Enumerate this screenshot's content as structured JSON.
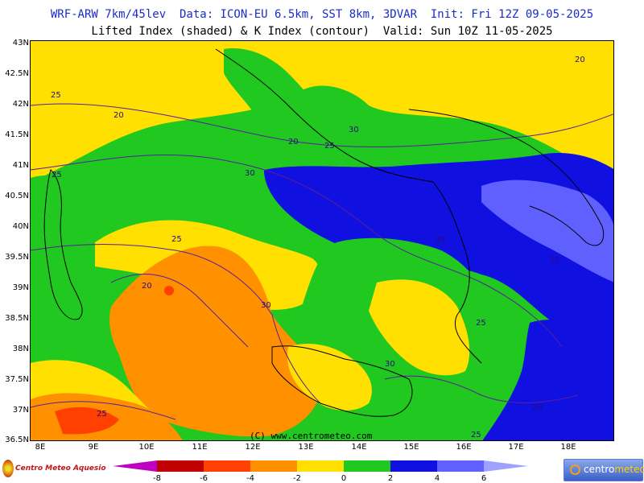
{
  "header": {
    "line1": "WRF-ARW 7km/45lev  Data: ICON-EU 6.5km, SST 8km, 3DVAR  Init: Fri 12Z 09-05-2025",
    "line2": "Lifted Index (shaded) & K Index (contour)  Valid: Sun 10Z 11-05-2025"
  },
  "axes": {
    "lat_labels": [
      "43N",
      "42.5N",
      "42N",
      "41.5N",
      "41N",
      "40.5N",
      "40N",
      "39.5N",
      "39N",
      "38.5N",
      "38N",
      "37.5N",
      "37N",
      "36.5N"
    ],
    "lon_labels": [
      "8E",
      "9E",
      "10E",
      "11E",
      "12E",
      "13E",
      "14E",
      "15E",
      "16E",
      "17E",
      "18E"
    ]
  },
  "contour_labels": [
    {
      "text": "20",
      "icon": "k-index-20"
    },
    {
      "text": "20",
      "icon": "k-index-20"
    },
    {
      "text": "20",
      "icon": "k-index-20"
    },
    {
      "text": "20",
      "icon": "k-index-20"
    },
    {
      "text": "20",
      "icon": "k-index-20"
    },
    {
      "text": "25",
      "icon": "k-index-25"
    },
    {
      "text": "25",
      "icon": "k-index-25"
    },
    {
      "text": "25",
      "icon": "k-index-25"
    },
    {
      "text": "25",
      "icon": "k-index-25"
    },
    {
      "text": "25",
      "icon": "k-index-25"
    },
    {
      "text": "25",
      "icon": "k-index-25"
    },
    {
      "text": "30",
      "icon": "k-index-30"
    },
    {
      "text": "30",
      "icon": "k-index-30"
    },
    {
      "text": "30",
      "icon": "k-index-30"
    },
    {
      "text": "30",
      "icon": "k-index-30"
    },
    {
      "text": "30",
      "icon": "k-index-30"
    },
    {
      "text": "25",
      "icon": "k-index-25"
    },
    {
      "text": "25",
      "icon": "k-index-25"
    }
  ],
  "copyright": "(C) www.centrometeo.com",
  "legend": {
    "labels": [
      "-8",
      "-6",
      "-4",
      "-2",
      "0",
      "2",
      "4",
      "6"
    ],
    "colors": [
      "#c000c0",
      "#c00000",
      "#ff4000",
      "#ff9000",
      "#ffe000",
      "#20c820",
      "#1010e0",
      "#3030f0",
      "#6060ff",
      "#a0a0ff"
    ]
  },
  "logos": {
    "left": "Centro Meteo Aquesio",
    "right_a": "centro",
    "right_b": "meteo"
  },
  "colors": {
    "title": "#1a2cc8",
    "yellow": "#ffe000",
    "green": "#20c820",
    "orange": "#ff9000",
    "blue": "#1010e0",
    "violet": "#6060ff"
  }
}
